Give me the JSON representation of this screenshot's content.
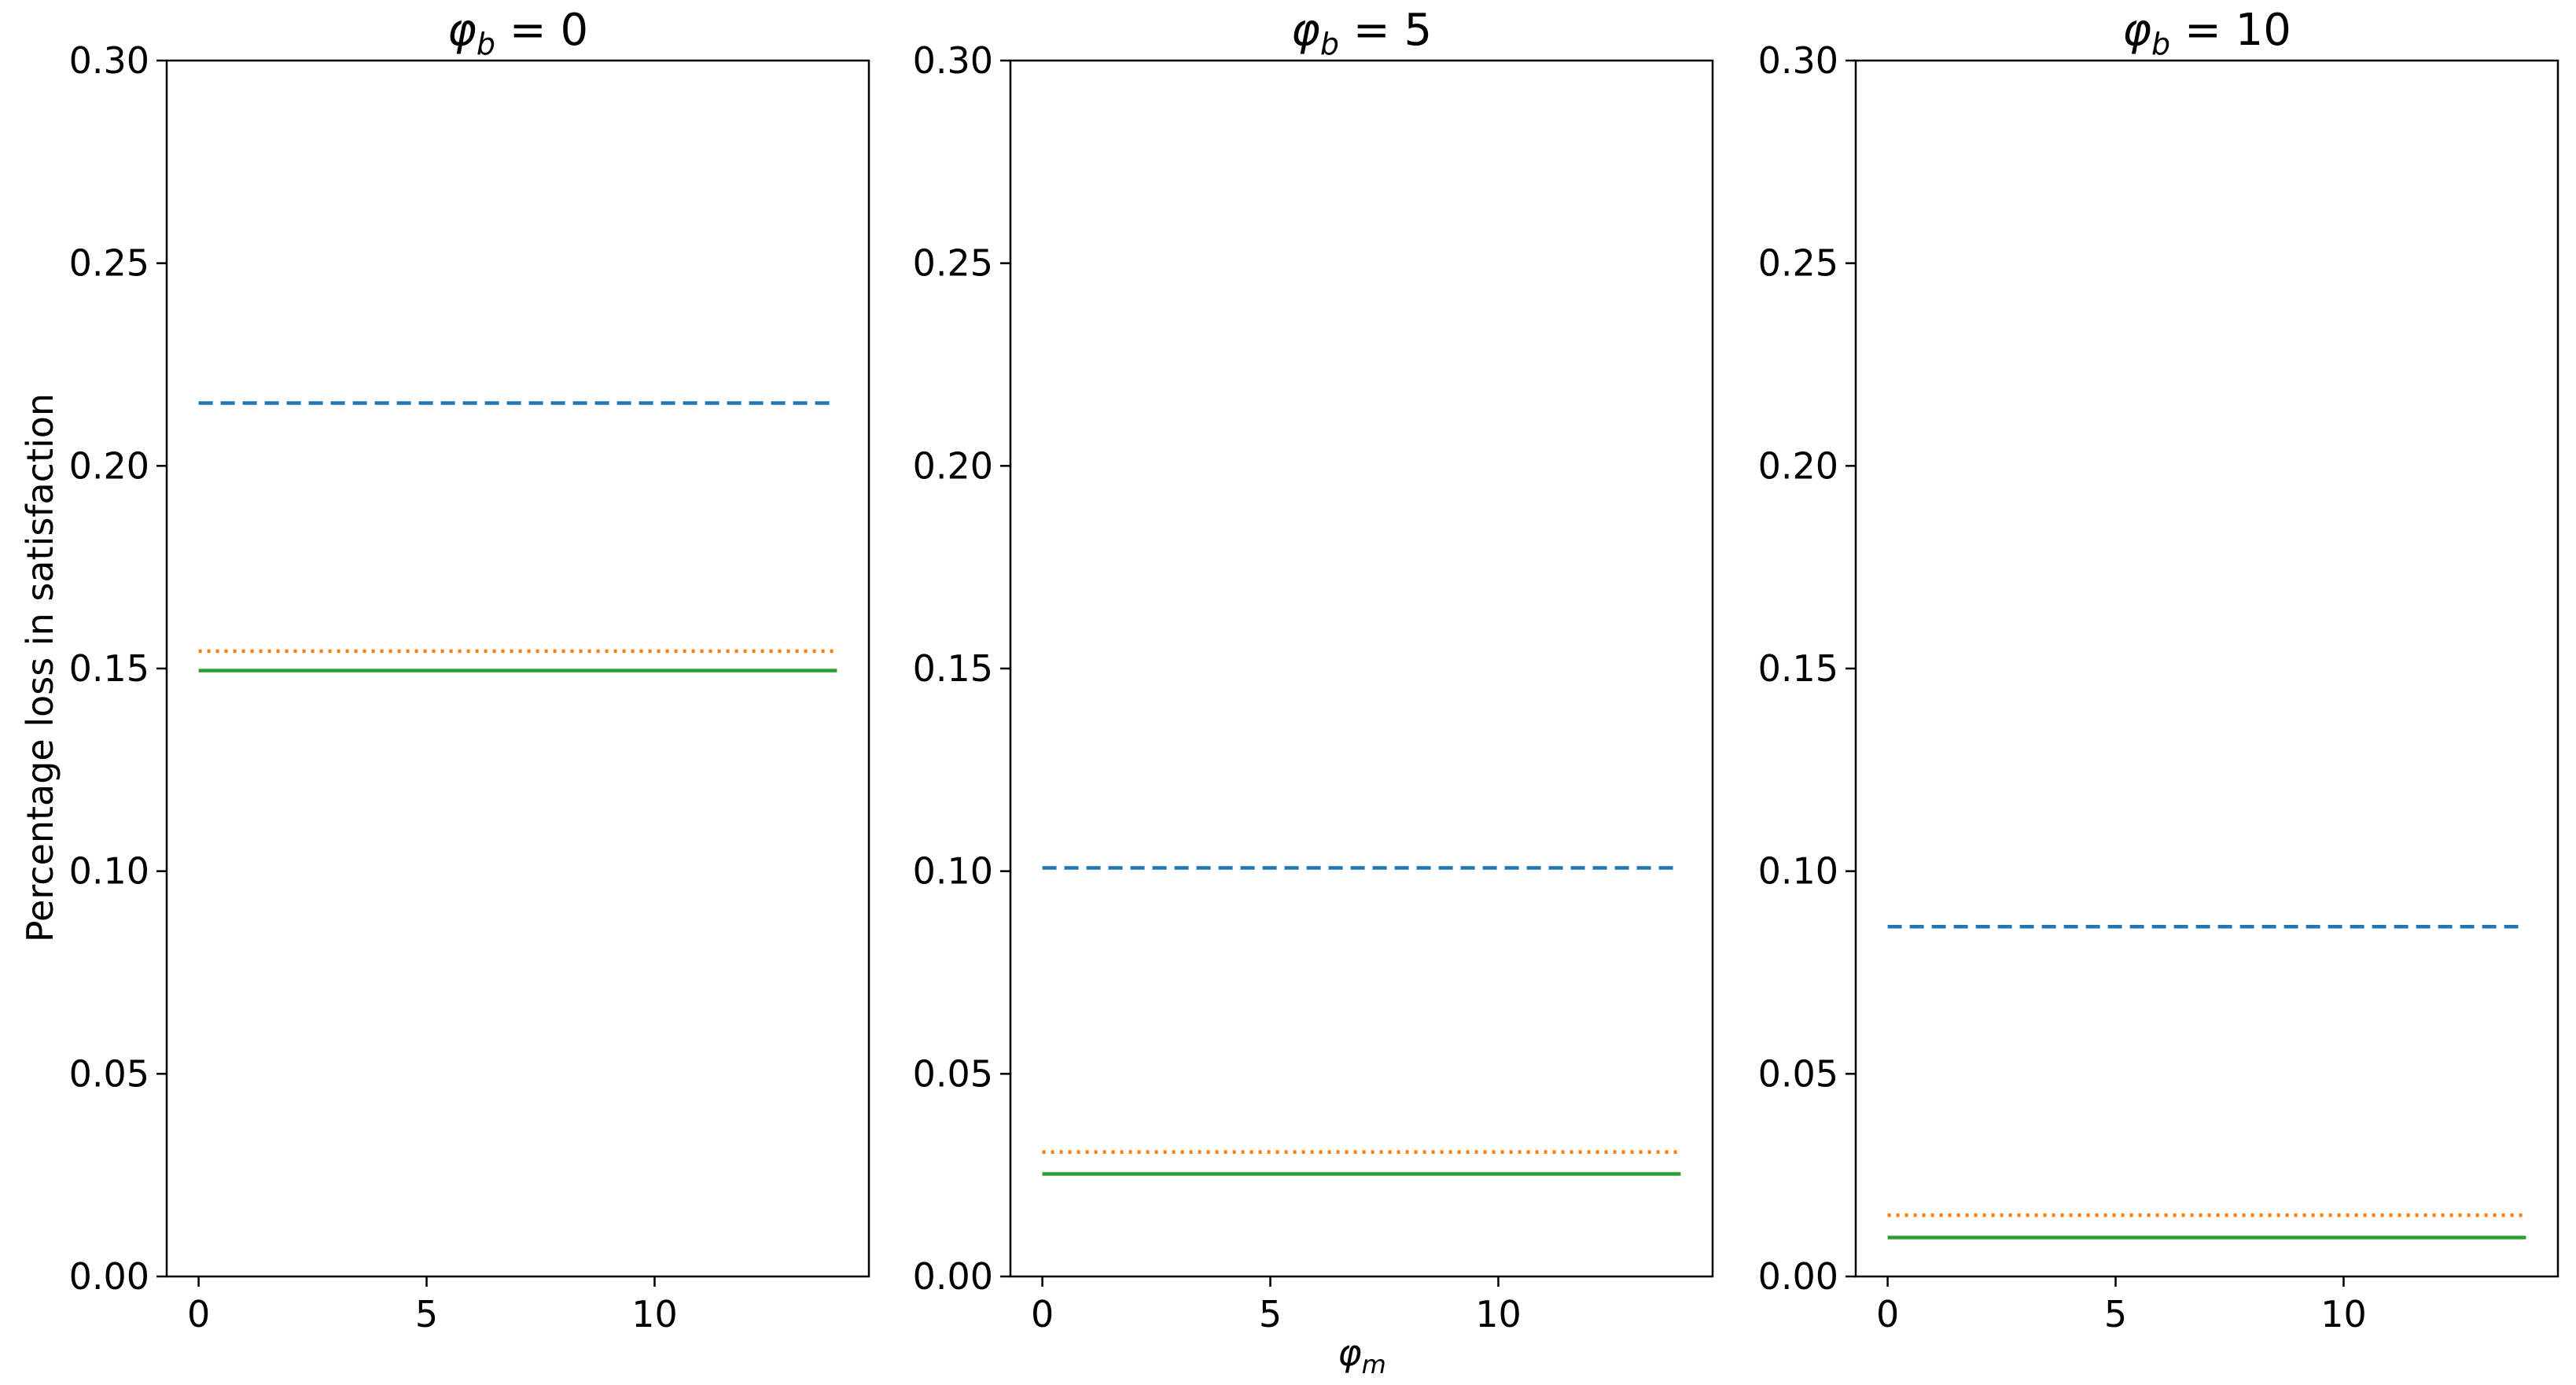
{
  "chart_data": {
    "type": "line",
    "ylabel": "Percentage loss in satisfaction",
    "xlabel": {
      "base": "φ",
      "sub": "m"
    },
    "ylim": [
      0,
      0.3
    ],
    "xlim": [
      -0.7,
      14.7
    ],
    "xticks": [
      0,
      5,
      10
    ],
    "yticks": [
      0.0,
      0.05,
      0.1,
      0.15,
      0.2,
      0.25,
      0.3
    ],
    "ytick_labels": [
      "0.00",
      "0.05",
      "0.10",
      "0.15",
      "0.20",
      "0.25",
      "0.30"
    ],
    "xtick_labels": [
      "0",
      "5",
      "10"
    ],
    "grid": false,
    "x": [
      0,
      14
    ],
    "series_styles": [
      {
        "color": "#1f77b4",
        "dash": "dashed"
      },
      {
        "color": "#ff7f0e",
        "dash": "dotted"
      },
      {
        "color": "#2ca02c",
        "dash": "solid"
      }
    ],
    "panels": [
      {
        "title": {
          "base": "φ",
          "sub": "b",
          "rest": " = 0"
        },
        "series": [
          {
            "values": [
              0.2155,
              0.2155
            ]
          },
          {
            "values": [
              0.1543,
              0.1543
            ]
          },
          {
            "values": [
              0.1495,
              0.1495
            ]
          }
        ]
      },
      {
        "title": {
          "base": "φ",
          "sub": "b",
          "rest": " = 5"
        },
        "series": [
          {
            "values": [
              0.1008,
              0.1008
            ]
          },
          {
            "values": [
              0.0307,
              0.0307
            ]
          },
          {
            "values": [
              0.0253,
              0.0253
            ]
          }
        ]
      },
      {
        "title": {
          "base": "φ",
          "sub": "b",
          "rest": " = 10"
        },
        "series": [
          {
            "values": [
              0.0863,
              0.0863
            ]
          },
          {
            "values": [
              0.0151,
              0.0151
            ]
          },
          {
            "values": [
              0.0096,
              0.0096
            ]
          }
        ]
      }
    ]
  }
}
